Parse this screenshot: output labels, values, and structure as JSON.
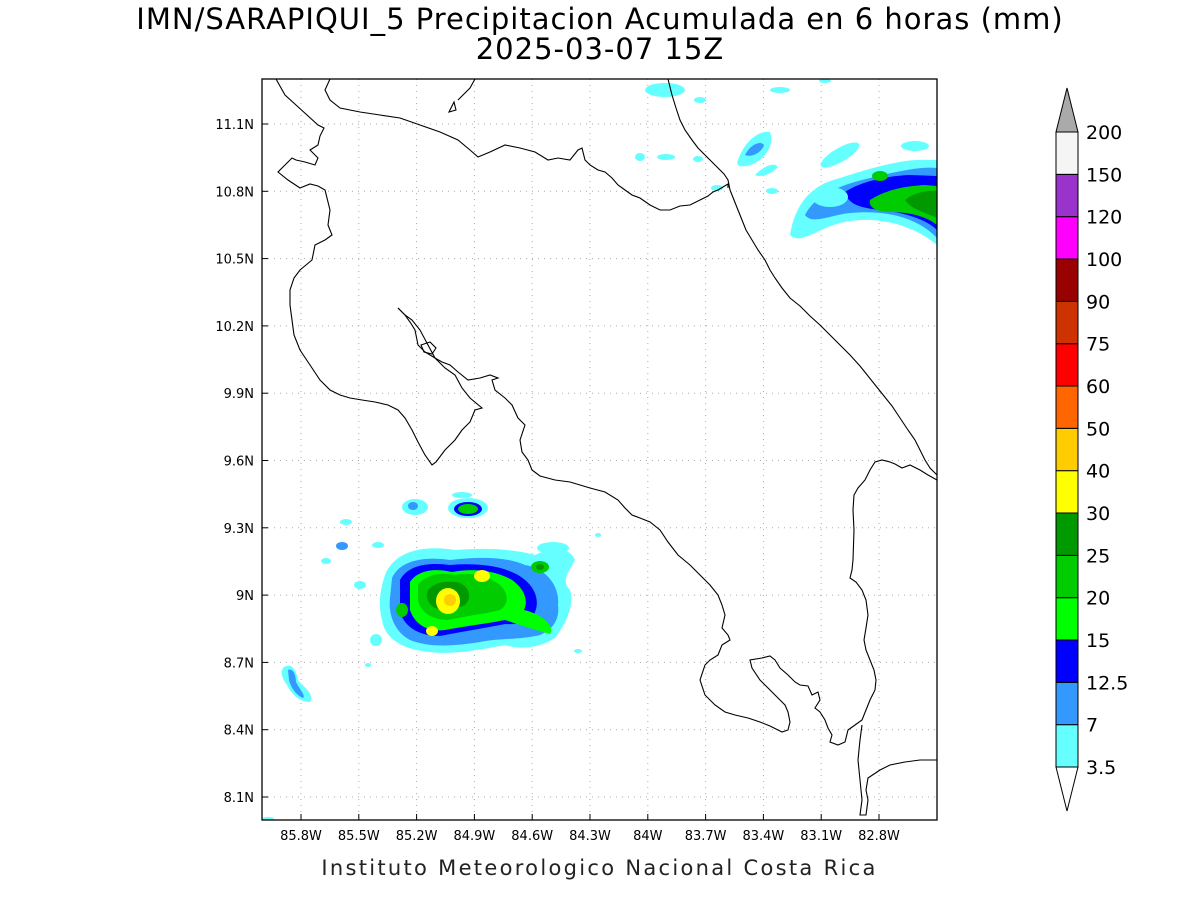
{
  "title": {
    "line1": "IMN/SARAPIQUI_5 Precipitacion Acumulada en 6 horas (mm)",
    "line2": "2025-03-07 15Z"
  },
  "footer": "Instituto Meteorologico Nacional Costa Rica",
  "map": {
    "lat_ticks": [
      "11.1N",
      "10.8N",
      "10.5N",
      "10.2N",
      "9.9N",
      "9.6N",
      "9.3N",
      "9N",
      "8.7N",
      "8.4N",
      "8.1N"
    ],
    "lon_ticks": [
      "85.8W",
      "85.5W",
      "85.2W",
      "84.9W",
      "84.6W",
      "84.3W",
      "84W",
      "83.7W",
      "83.4W",
      "83.1W",
      "82.8W"
    ],
    "grid": true
  },
  "colorbar": {
    "labels": [
      "3.5",
      "7",
      "12.5",
      "15",
      "20",
      "25",
      "30",
      "40",
      "50",
      "60",
      "75",
      "90",
      "100",
      "120",
      "150",
      "200"
    ],
    "colors": [
      "#66ffff",
      "#3399ff",
      "#0000ff",
      "#00ff00",
      "#00cc00",
      "#009900",
      "#ffff00",
      "#ffcc00",
      "#ff6600",
      "#ff0000",
      "#cc3300",
      "#990000",
      "#ff00ff",
      "#9933cc",
      "#f5f5f5",
      "#aaaaaa"
    ]
  }
}
